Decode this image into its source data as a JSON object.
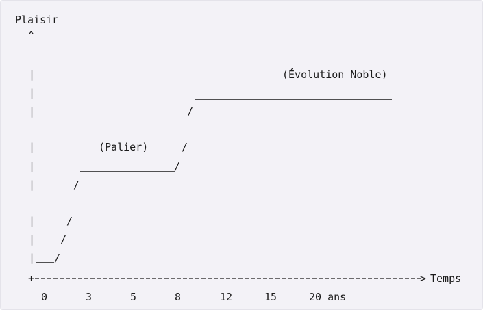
{
  "diagram": {
    "y_axis_label": "Plaisir",
    "y_arrow": "^",
    "axis_bar": "|",
    "slash": "/",
    "origin_plus": "+",
    "x_arrow_head": ">",
    "x_axis_label": "Temps",
    "plateau_label": "(Palier)",
    "noble_label": "(Évolution Noble)",
    "tick_labels": [
      "0",
      "3",
      "5",
      "8",
      "12",
      "15",
      "20 ans"
    ]
  }
}
